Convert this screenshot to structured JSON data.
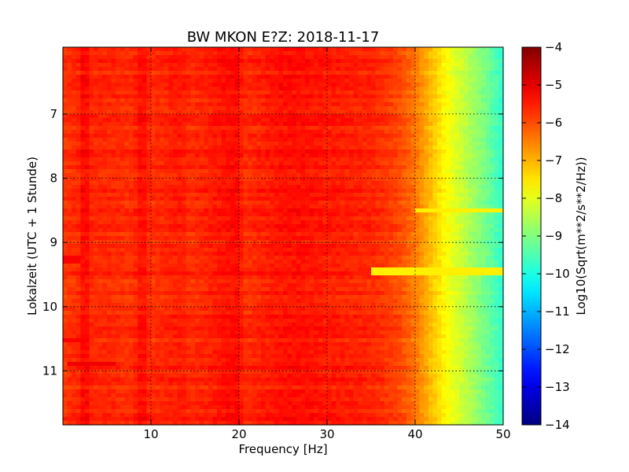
{
  "chart_data": {
    "type": "heatmap",
    "title": "BW MKON E?Z: 2018-11-17",
    "xlabel": "Frequency [Hz]",
    "ylabel": "Lokalzeit (UTC + 1 Stunde)",
    "colorbar_label": "Log10(Sqrt(m**2/s**2/Hz))",
    "xlim": [
      0,
      50
    ],
    "ylim": [
      5.96,
      11.84
    ],
    "y_inverted": true,
    "x_ticks": [
      10,
      20,
      30,
      40,
      50
    ],
    "x_tick_labels": [
      "10",
      "20",
      "30",
      "40",
      "50"
    ],
    "y_ticks": [
      7,
      8,
      9,
      10,
      11
    ],
    "y_tick_labels": [
      "7",
      "8",
      "9",
      "10",
      "11"
    ],
    "colorbar_range": [
      -14,
      -4
    ],
    "colorbar_ticks": [
      -4,
      -5,
      -6,
      -7,
      -8,
      -9,
      -10,
      -11,
      -12,
      -13,
      -14
    ],
    "colorbar_tick_labels": [
      "−4",
      "−5",
      "−6",
      "−7",
      "−8",
      "−9",
      "−10",
      "−11",
      "−12",
      "−13",
      "−14"
    ],
    "colormap": "jet",
    "grid": true,
    "frequency_profile": {
      "frequency_hz": [
        0,
        2,
        2.5,
        3,
        8,
        9,
        10,
        13.5,
        14.5,
        20,
        20.5,
        25,
        27,
        30,
        35,
        38,
        40,
        42,
        44,
        46,
        48,
        50
      ],
      "log10_amplitude": [
        -5.8,
        -5.6,
        -5.1,
        -5.6,
        -5.7,
        -5.3,
        -5.7,
        -5.5,
        -5.7,
        -5.3,
        -5.7,
        -5.4,
        -5.4,
        -5.5,
        -5.6,
        -5.9,
        -6.4,
        -7.2,
        -7.9,
        -8.5,
        -9.1,
        -9.8
      ]
    },
    "horizontal_features": [
      {
        "time_h": 10.88,
        "freq_range_hz": [
          0.5,
          6
        ],
        "log10_amplitude": -5.1
      },
      {
        "time_h": 10.52,
        "freq_range_hz": [
          0,
          3
        ],
        "log10_amplitude": -5.2
      },
      {
        "time_h": 9.28,
        "freq_range_hz": [
          0,
          2
        ],
        "log10_amplitude": -5.2
      },
      {
        "time_h": 9.44,
        "freq_range_hz": [
          35,
          50
        ],
        "log10_amplitude": -7.6
      },
      {
        "time_h": 8.5,
        "freq_range_hz": [
          40,
          50
        ],
        "log10_amplitude": -7.6
      }
    ]
  }
}
